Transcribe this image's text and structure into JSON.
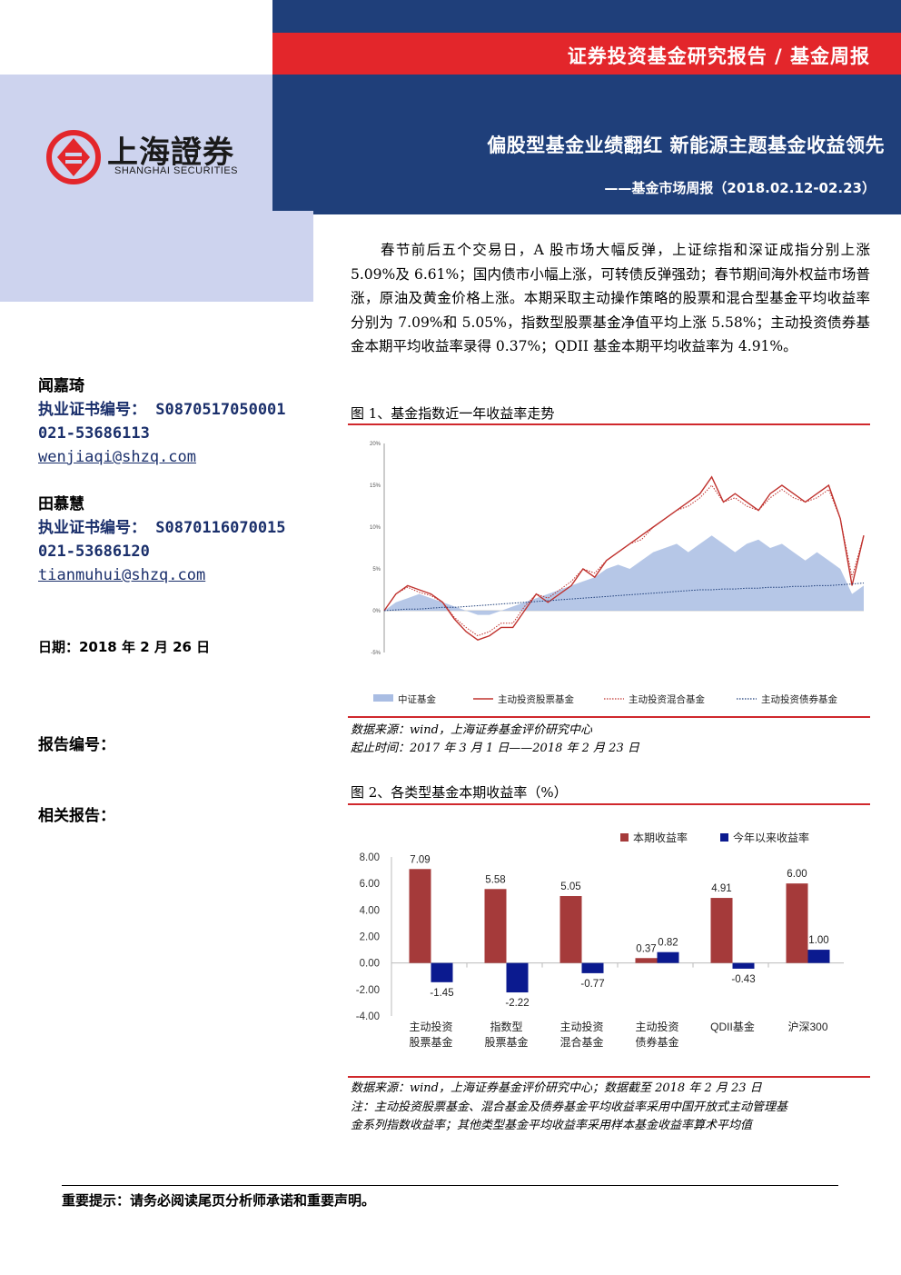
{
  "header": {
    "series": "证券投资基金研究报告 / 基金周报",
    "title": "偏股型基金业绩翻红 新能源主题基金收益领先",
    "subtitle": "——基金市场周报（2018.02.12-02.23）"
  },
  "logo": {
    "cn": "上海證券",
    "en": "SHANGHAI SECURITIES"
  },
  "authors": [
    {
      "name": "闻嘉琦",
      "cert": "执业证书编号： S0870517050001",
      "phone": "021-53686113",
      "email": "wenjiaqi@shzq.com "
    },
    {
      "name": "田慕慧",
      "cert": "执业证书编号： S0870116070015",
      "phone": "021-53686120",
      "email": "tianmuhui@shzq.com"
    }
  ],
  "date": "日期：2018 年 2 月 26 日",
  "report_no": "报告编号：",
  "related": "相关报告：",
  "summary": "春节前后五个交易日，A 股市场大幅反弹，上证综指和深证成指分别上涨 5.09%及 6.61%；国内债市小幅上涨，可转债反弹强劲；春节期间海外权益市场普涨，原油及黄金价格上涨。本期采取主动操作策略的股票和混合型基金平均收益率分别为 7.09%和 5.05%，指数型股票基金净值平均上涨 5.58%；主动投资债券基金本期平均收益率录得 0.37%；QDII 基金本期平均收益率为 4.91%。",
  "fig1": {
    "title": "图 1、基金指数近一年收益率走势",
    "source1": "数据来源：wind，上海证券基金评价研究中心",
    "source2": "起止时间：2017 年 3 月 1 日——2018 年 2 月 23 日"
  },
  "fig2": {
    "title": "图 2、各类型基金本期收益率（%）",
    "source1": "数据来源：wind，上海证券基金评价研究中心；数据截至 2018 年 2 月 23 日",
    "source2": "注：主动投资股票基金、混合基金及债券基金平均收益率采用中国开放式主动管理基",
    "source3": "金系列指数收益率；其他类型基金平均收益率采用样本基金收益率算术平均值"
  },
  "colors": {
    "navy": "#1f3f7a",
    "red": "#e3262b",
    "bar1": "#a53a3a",
    "bar2": "#0b1a8f",
    "area": "#a9bde3",
    "stock_line": "#c0332f",
    "bond_line": "#1f3f7a"
  },
  "chart_data": [
    {
      "type": "area",
      "legend_position": "bottom",
      "y_tick_labels": [
        "20%",
        "15%",
        "10%",
        "5%",
        "0%",
        "-5%"
      ],
      "ylim": [
        -5,
        20
      ],
      "series": [
        {
          "name": "中证基金",
          "values": [
            0,
            1,
            1.5,
            2,
            1.5,
            1,
            0.5,
            0,
            -0.5,
            -0.5,
            0,
            0.5,
            1,
            1.5,
            2,
            2.5,
            3,
            3.5,
            4,
            5,
            5.5,
            5,
            6,
            7,
            7.5,
            8,
            7,
            8,
            9,
            8,
            7,
            8,
            8.5,
            7.5,
            8,
            7,
            6,
            7,
            6,
            5,
            2,
            3
          ]
        },
        {
          "name": "主动投资股票基金",
          "values": [
            0,
            2,
            3,
            2.5,
            2,
            1,
            -1,
            -2.5,
            -3.5,
            -3,
            -2,
            -2,
            0,
            2,
            1,
            2,
            3,
            5,
            4,
            6,
            7,
            8,
            9,
            10,
            11,
            12,
            13,
            14,
            16,
            13,
            14,
            13,
            12,
            14,
            15,
            14,
            13,
            14,
            15,
            11,
            3,
            9
          ]
        },
        {
          "name": "主动投资混合基金",
          "values": [
            0,
            2,
            2.8,
            2.2,
            1.8,
            1,
            -0.8,
            -2,
            -3,
            -2.5,
            -1.5,
            -1.5,
            0.5,
            2,
            1.5,
            2.5,
            3.5,
            5,
            4.5,
            6,
            7,
            8,
            8.5,
            10,
            11,
            12,
            12.5,
            13.5,
            15,
            13,
            13.5,
            12.5,
            12,
            13.5,
            14.5,
            13.5,
            13,
            13.5,
            14.5,
            11,
            4,
            9
          ]
        },
        {
          "name": "主动投资债券基金",
          "values": [
            0,
            0.1,
            0.2,
            0.2,
            0.3,
            0.4,
            0.4,
            0.5,
            0.6,
            0.7,
            0.8,
            0.9,
            1,
            1.1,
            1.2,
            1.3,
            1.4,
            1.5,
            1.6,
            1.7,
            1.8,
            1.9,
            2,
            2.1,
            2.2,
            2.3,
            2.4,
            2.5,
            2.5,
            2.6,
            2.6,
            2.7,
            2.7,
            2.8,
            2.8,
            2.9,
            2.9,
            3,
            3,
            3.1,
            3.2,
            3.3
          ]
        }
      ]
    },
    {
      "type": "bar",
      "legend_position": "top-right",
      "categories": [
        [
          "主动投资",
          "股票基金"
        ],
        [
          "指数型",
          "股票基金"
        ],
        [
          "主动投资",
          "混合基金"
        ],
        [
          "主动投资",
          "债券基金"
        ],
        [
          "QDII基金"
        ],
        [
          "沪深300"
        ]
      ],
      "ylim": [
        -4,
        8
      ],
      "y_ticks": [
        "8.00",
        "6.00",
        "4.00",
        "2.00",
        "0.00",
        "-2.00",
        "-4.00"
      ],
      "series": [
        {
          "name": "本期收益率",
          "values": [
            7.09,
            5.58,
            5.05,
            0.37,
            4.91,
            6.0
          ],
          "labels": [
            "7.09",
            "5.58",
            "5.05",
            "0.37",
            "4.91",
            "6.00"
          ]
        },
        {
          "name": "今年以来收益率",
          "values": [
            -1.45,
            -2.22,
            -0.77,
            0.82,
            -0.43,
            1.0
          ],
          "labels": [
            "-1.45",
            "-2.22",
            "-0.77",
            "0.82",
            "-0.43",
            "1.00"
          ]
        }
      ]
    }
  ],
  "footer": "重要提示：请务必阅读尾页分析师承诺和重要声明。"
}
